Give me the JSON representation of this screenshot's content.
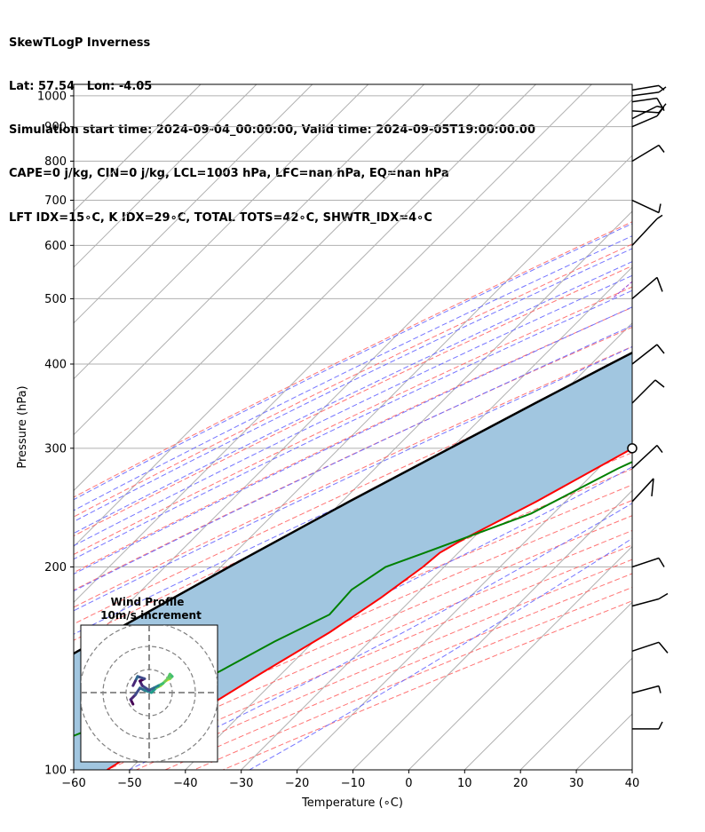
{
  "header": {
    "line1": "SkewTLogP Inverness",
    "line2": "Lat: 57.54   Lon: -4.05",
    "line3": "Simulation start time: 2024-09-04_00:00:00, Valid time: 2024-09-05T19:00:00.00",
    "line4": "CAPE=0 j/kg, CIN=0 j/kg, LCL=1003 hPa, LFC=nan hPa, EQ=nan hPa",
    "line5": "LFT IDX=15∘C, K IDX=29∘C, TOTAL TOTS=42∘C, SHWTR_IDX=4∘C"
  },
  "colors": {
    "temperature": "#ff0000",
    "dewpoint": "#008000",
    "parcel": "#000000",
    "cape_fill": "#a1c6e0",
    "dry_adiabat": "#ff6666",
    "moist_adiabat": "#6666ff",
    "mixing_ratio": "#9a3fd0",
    "isotherm": "#b0b0b0"
  },
  "hodograph": {
    "title_line1": "Wind Profile",
    "title_line2": "10m/s increment"
  },
  "chart_data": {
    "type": "line",
    "title": "SkewTLogP Inverness",
    "xlabel": "Temperature (∘C)",
    "ylabel": "Pressure (hPa)",
    "xlim": [
      -60,
      40
    ],
    "ylim": [
      1040,
      100
    ],
    "yscale": "log",
    "skew": true,
    "grid": true,
    "x_ticks": [
      -60,
      -50,
      -40,
      -30,
      -20,
      -10,
      0,
      10,
      20,
      30,
      40
    ],
    "x_tick_labels": [
      "−60",
      "−50",
      "−40",
      "−30",
      "−20",
      "−10",
      "0",
      "10",
      "20",
      "30",
      "40"
    ],
    "y_ticks": [
      1000,
      900,
      800,
      700,
      600,
      500,
      400,
      300,
      200,
      100
    ],
    "y_tick_labels": [
      "1000",
      "900",
      "800",
      "700",
      "600",
      "500",
      "400",
      "300",
      "200",
      "100"
    ],
    "series": [
      {
        "name": "temperature",
        "points": [
          [
            1012,
            12.0
          ],
          [
            1000,
            12.3
          ],
          [
            950,
            15.0
          ],
          [
            900,
            16.7
          ],
          [
            860,
            18.5
          ],
          [
            820,
            19.3
          ],
          [
            780,
            17.5
          ],
          [
            700,
            13.8
          ],
          [
            600,
            10.2
          ],
          [
            500,
            5.5
          ],
          [
            450,
            1.5
          ],
          [
            400,
            -4.5
          ],
          [
            350,
            -10.2
          ],
          [
            300,
            -17.5
          ],
          [
            250,
            -25.2
          ],
          [
            220,
            -31.5
          ],
          [
            210,
            -33.3
          ],
          [
            200,
            -33.8
          ],
          [
            180,
            -35.8
          ],
          [
            160,
            -38.8
          ],
          [
            140,
            -43.5
          ],
          [
            120,
            -48.5
          ],
          [
            100,
            -54.0
          ]
        ]
      },
      {
        "name": "dewpoint",
        "points": [
          [
            1012,
            11.5
          ],
          [
            1000,
            11.8
          ],
          [
            960,
            12.3
          ],
          [
            930,
            12.6
          ],
          [
            900,
            14.0
          ],
          [
            860,
            15.5
          ],
          [
            800,
            13.7
          ],
          [
            700,
            9.5
          ],
          [
            600,
            0.5
          ],
          [
            550,
            -5.0
          ],
          [
            500,
            -11.0
          ],
          [
            480,
            -16.5
          ],
          [
            450,
            -24.0
          ],
          [
            420,
            -26.8
          ],
          [
            400,
            -26.2
          ],
          [
            360,
            -18.0
          ],
          [
            330,
            -10.5
          ],
          [
            310,
            -10.2
          ],
          [
            280,
            -16.5
          ],
          [
            240,
            -24.0
          ],
          [
            210,
            -36.0
          ],
          [
            200,
            -40.5
          ],
          [
            185,
            -42.5
          ],
          [
            170,
            -42.0
          ],
          [
            155,
            -47.0
          ],
          [
            140,
            -51.5
          ],
          [
            120,
            -61.0
          ],
          [
            100,
            -75.0
          ]
        ]
      },
      {
        "name": "parcel",
        "points": [
          [
            1020,
            11.8
          ],
          [
            1000,
            11.6
          ],
          [
            950,
            8.7
          ],
          [
            900,
            5.7
          ],
          [
            850,
            2.6
          ],
          [
            800,
            -0.7
          ],
          [
            700,
            -7.8
          ],
          [
            600,
            -16.0
          ],
          [
            500,
            -25.5
          ],
          [
            450,
            -30.8
          ],
          [
            400,
            -36.6
          ],
          [
            350,
            -43.0
          ],
          [
            300,
            -50.2
          ],
          [
            250,
            -58.7
          ],
          [
            200,
            -68.5
          ],
          [
            150,
            -80.5
          ],
          [
            100,
            -96.0
          ]
        ]
      }
    ],
    "wind_barbs": [
      {
        "p": 1020,
        "type": "barb"
      },
      {
        "p": 1000,
        "type": "barb"
      },
      {
        "p": 980,
        "type": "barb"
      },
      {
        "p": 950,
        "type": "barb"
      },
      {
        "p": 925,
        "type": "barb"
      },
      {
        "p": 900,
        "type": "barb"
      },
      {
        "p": 800,
        "type": "barb"
      },
      {
        "p": 700,
        "type": "barb"
      },
      {
        "p": 600,
        "type": "barb"
      },
      {
        "p": 500,
        "type": "barb"
      },
      {
        "p": 400,
        "type": "barb"
      },
      {
        "p": 350,
        "type": "barb"
      },
      {
        "p": 300,
        "type": "calm"
      },
      {
        "p": 280,
        "type": "barb"
      },
      {
        "p": 250,
        "type": "barb"
      },
      {
        "p": 200,
        "type": "barb"
      },
      {
        "p": 175,
        "type": "barb"
      },
      {
        "p": 150,
        "type": "barb"
      },
      {
        "p": 130,
        "type": "barb"
      },
      {
        "p": 115,
        "type": "barb"
      }
    ],
    "hodograph_points": [
      [
        -7,
        -5
      ],
      [
        -8,
        -3
      ],
      [
        -6,
        -1
      ],
      [
        -4,
        2
      ],
      [
        -2,
        1
      ],
      [
        1,
        0
      ],
      [
        3,
        2
      ],
      [
        5,
        3
      ],
      [
        7,
        5
      ],
      [
        9,
        6
      ],
      [
        10,
        7
      ],
      [
        9,
        8
      ],
      [
        8,
        6
      ],
      [
        6,
        4
      ],
      [
        4,
        3
      ],
      [
        2,
        2
      ],
      [
        0,
        1
      ],
      [
        -3,
        3
      ],
      [
        -4,
        5
      ],
      [
        -2,
        6
      ],
      [
        -5,
        7
      ],
      [
        -6,
        5
      ],
      [
        -7,
        3
      ]
    ]
  }
}
